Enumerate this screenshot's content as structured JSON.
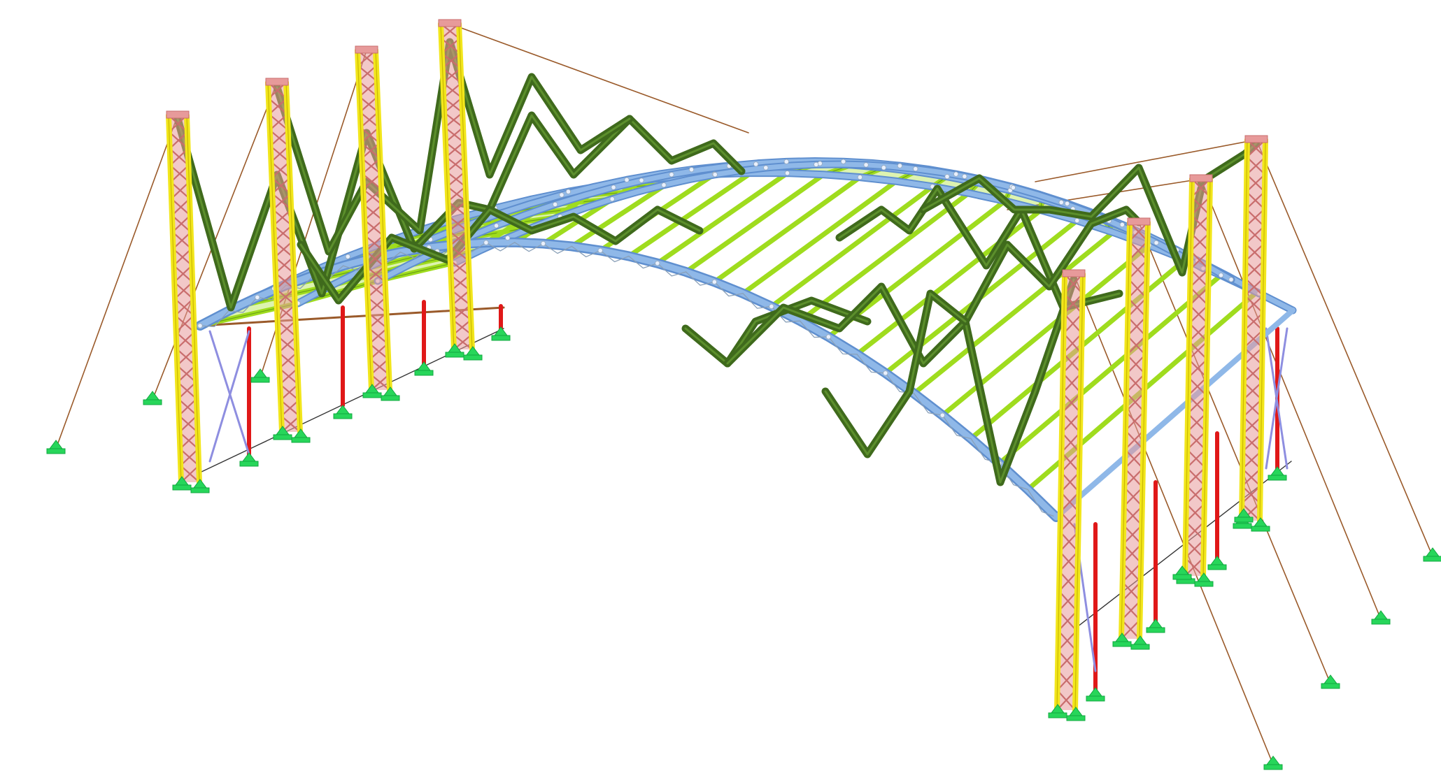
{
  "scene": {
    "subject": "structural-model-arched-roof",
    "colors": {
      "background": "#ffffff",
      "mast_chord": "#f2e61c",
      "mast_lattice": "#e79a9a",
      "mast_lattice_dark": "#c96d6d",
      "green_truss": "#3f6a1c",
      "green_truss_highlight": "#5c8f2c",
      "roof_purlin": "#9fdc1e",
      "roof_purlin_dark": "#6aa214",
      "arch_rib": "#8fb8e8",
      "arch_rib_dark": "#5f8fcf",
      "bracing": "#8e8ee0",
      "red_column": "#e01818",
      "cable": "#9a5a2a",
      "support": "#27d65a",
      "node": "#e8f0ff"
    }
  }
}
